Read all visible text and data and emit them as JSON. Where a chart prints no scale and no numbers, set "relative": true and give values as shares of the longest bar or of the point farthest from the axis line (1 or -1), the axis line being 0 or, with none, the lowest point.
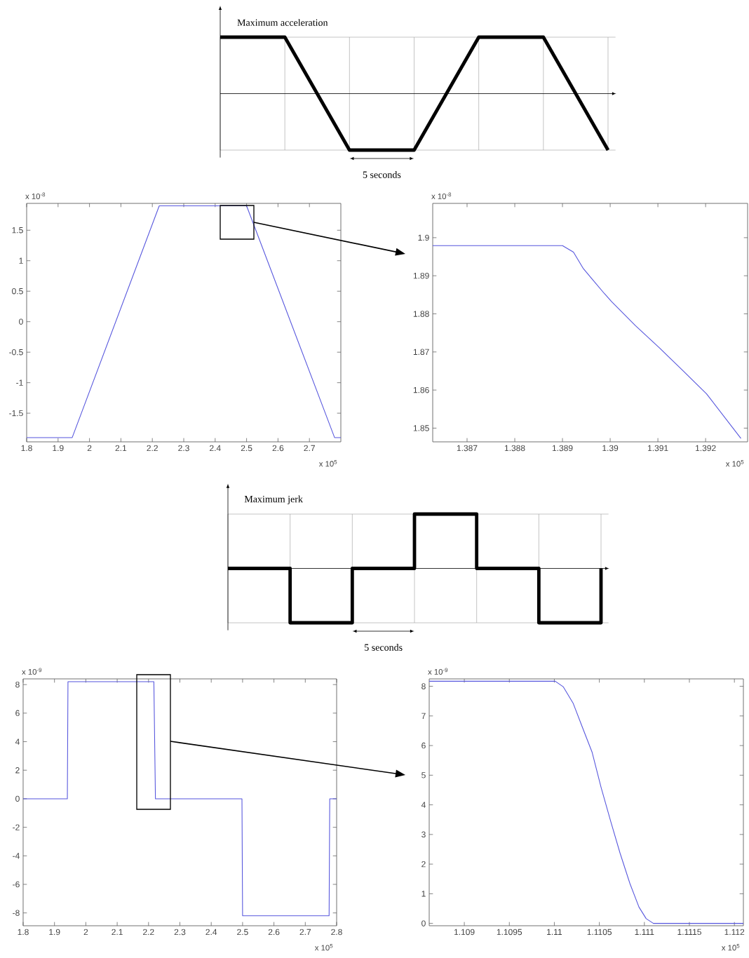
{
  "chart_data": [
    {
      "type": "line",
      "title": "Maximum acceleration",
      "relative": true,
      "grid": true,
      "categories": [
        null,
        null,
        null,
        null,
        null,
        null,
        null
      ],
      "values": [
        1,
        1,
        -1,
        -1,
        1,
        1,
        -1
      ],
      "color": "#000000",
      "annotations": [
        "5 seconds"
      ]
    },
    {
      "type": "line",
      "x": [
        1.8,
        1.945,
        2.222,
        2.5,
        2.78,
        2.8
      ],
      "values": [
        -1.9,
        -1.9,
        1.9,
        1.9,
        -1.9,
        -1.9
      ],
      "color": "#5555dd",
      "xlabel": "x 10$^{5}$",
      "ylabel": "x 10$^{-8}$",
      "xlim": [
        1.8,
        2.8
      ],
      "ylim": [
        -1.97,
        1.94
      ],
      "xticks": [
        1.8,
        1.9,
        2,
        2.1,
        2.2,
        2.3,
        2.4,
        2.5,
        2.6,
        2.7
      ],
      "yticks": [
        -1.5,
        -1,
        -0.5,
        0,
        0.5,
        1,
        1.5
      ]
    },
    {
      "type": "line",
      "x": [
        1.38628,
        1.389,
        1.38923,
        1.38943,
        1.38963,
        1.38988,
        1.39003,
        1.39053,
        1.39103,
        1.39153,
        1.39202,
        1.39274
      ],
      "values": [
        1.8979,
        1.8979,
        1.8962,
        1.892,
        1.889,
        1.8853,
        1.8832,
        1.8769,
        1.8711,
        1.865,
        1.859,
        1.8473
      ],
      "color": "#5555dd",
      "xlabel": "x 10$^{5}$",
      "ylabel": "x 10$^{-8}$",
      "xlim": [
        1.38628,
        1.39288
      ],
      "ylim": [
        1.8464,
        1.909
      ],
      "xticks": [
        1.387,
        1.388,
        1.389,
        1.39,
        1.391,
        1.392
      ],
      "yticks": [
        1.85,
        1.86,
        1.87,
        1.88,
        1.89,
        1.9
      ]
    },
    {
      "type": "step",
      "title": "Maximum jerk",
      "relative": true,
      "grid": true,
      "categories": [
        null,
        null,
        null,
        null,
        null,
        null,
        null
      ],
      "values": [
        0,
        -1,
        0,
        1,
        0,
        -1,
        0
      ],
      "color": "#000000",
      "annotations": [
        "5 seconds"
      ]
    },
    {
      "type": "line",
      "x": [
        1.8,
        1.941,
        1.943,
        2.217,
        2.222,
        2.498,
        2.5,
        2.776,
        2.778,
        2.8
      ],
      "values": [
        0,
        0,
        8.2,
        8.2,
        0,
        0,
        -8.2,
        -8.2,
        0,
        0
      ],
      "color": "#5555dd",
      "xlabel": "x 10$^{5}$",
      "ylabel": "x 10$^{-9}$",
      "xlim": [
        1.8,
        2.8
      ],
      "ylim": [
        -8.9,
        8.4
      ],
      "xticks": [
        1.8,
        1.9,
        2,
        2.1,
        2.2,
        2.3,
        2.4,
        2.5,
        2.6,
        2.7,
        2.8
      ],
      "yticks": [
        -8,
        -6,
        -4,
        -2,
        0,
        2,
        4,
        6,
        8
      ]
    },
    {
      "type": "line",
      "x": [
        1.10861,
        1.11001,
        1.1101,
        1.11021,
        1.11031,
        1.11042,
        1.11052,
        1.11063,
        1.11073,
        1.11084,
        1.11094,
        1.11102,
        1.1111,
        1.1121
      ],
      "values": [
        8.17,
        8.17,
        7.98,
        7.42,
        6.63,
        5.77,
        4.58,
        3.4,
        2.37,
        1.34,
        0.55,
        0.16,
        0,
        0
      ],
      "color": "#5555dd",
      "xlabel": "x 10$^{5}$",
      "ylabel": "x 10$^{-9}$",
      "xlim": [
        1.10861,
        1.1121
      ],
      "ylim": [
        -0.08,
        8.25
      ],
      "xticks": [
        1.109,
        1.1095,
        1.11,
        1.1105,
        1.111,
        1.1115,
        1.112
      ],
      "yticks": [
        0,
        1,
        2,
        3,
        4,
        5,
        6,
        7,
        8
      ]
    }
  ]
}
